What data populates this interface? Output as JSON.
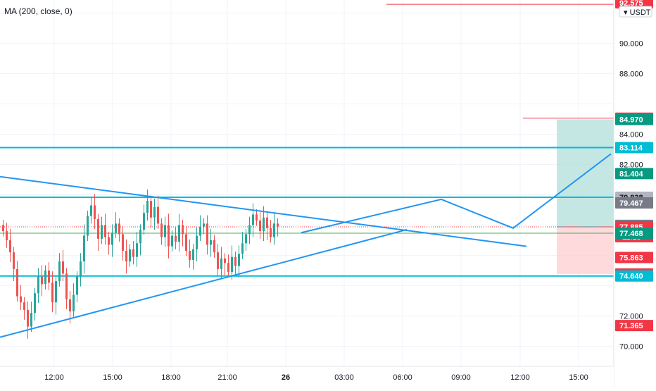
{
  "chart_data": {
    "type": "candlestick",
    "indicator_label": "MA (200, close, 0)",
    "currency_label": "USDT",
    "price_scale_ticks": [
      "90.000",
      "88.000",
      "84.000",
      "82.000",
      "72.000",
      "70.000"
    ],
    "time_axis_labels": [
      "12:00",
      "15:00",
      "18:00",
      "21:00",
      "26",
      "03:00",
      "06:00",
      "09:00",
      "12:00",
      "15:00"
    ],
    "price_tags": [
      {
        "label": "92.575",
        "price": 92.575,
        "color": "#f23645"
      },
      {
        "label": "85.060",
        "price": 85.06,
        "color": "#f23645"
      },
      {
        "label": "84.970",
        "price": 84.97,
        "color": "#089981"
      },
      {
        "label": "83.114",
        "price": 83.114,
        "color": "#00bcd4"
      },
      {
        "label": "81.404",
        "price": 81.404,
        "color": "#089981"
      },
      {
        "label": "79.838",
        "price": 79.838,
        "color": "#b2b5be",
        "text_color": "#131722"
      },
      {
        "label": "79.467",
        "price": 79.467,
        "color": "#787b86"
      },
      {
        "label": "77.985",
        "price": 77.985,
        "color": "#787b86"
      },
      {
        "label": "77.885",
        "price": 77.885,
        "color": "#f23645",
        "countdown": "11:19"
      },
      {
        "label": "77.468",
        "price": 77.468,
        "color": "#089981"
      },
      {
        "label": "75.863",
        "price": 75.863,
        "color": "#f23645"
      },
      {
        "label": "74.772",
        "price": 74.772,
        "color": "#f23645"
      },
      {
        "label": "74.640",
        "price": 74.64,
        "color": "#00bcd4"
      },
      {
        "label": "71.365",
        "price": 71.365,
        "color": "#f23645"
      }
    ],
    "horizontal_levels": [
      83.114,
      79.838,
      74.64
    ],
    "entry_price": 77.885,
    "target_price": 84.97,
    "stop_price": 74.772,
    "ma_price": 77.468,
    "colors": {
      "up": "#26a69a",
      "down": "#ef5350",
      "level": "#00bcd4",
      "drawing": "#2196f3",
      "profit_zone": "#b2dfdb",
      "loss_zone": "#ffcdd2"
    }
  }
}
